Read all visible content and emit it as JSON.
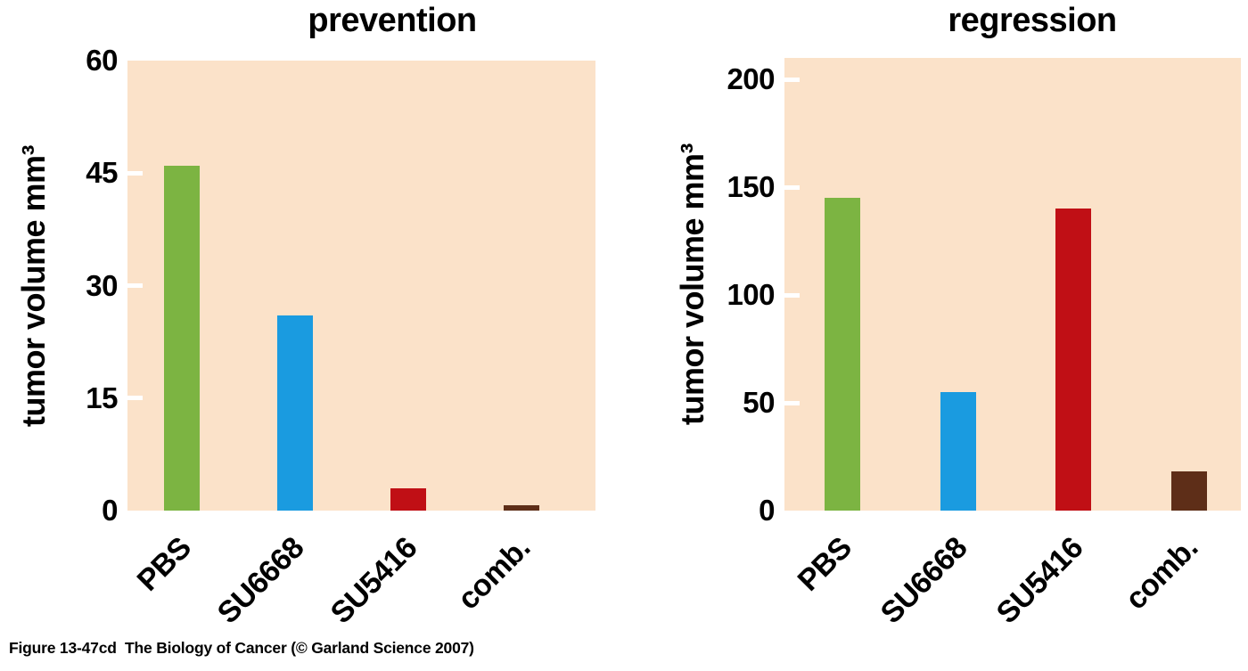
{
  "figure": {
    "caption": "Figure 13-47cd  The Biology of Cancer (© Garland Science 2007)"
  },
  "colors": {
    "plot_background": "#FBE2C9",
    "tick_mark": "#FFFFFF",
    "text": "#000000",
    "bar_green": "#7CB442",
    "bar_blue": "#1A9BE0",
    "bar_red": "#C00F15",
    "bar_brown": "#5E2E18"
  },
  "chart_data": [
    {
      "type": "bar",
      "title": "prevention",
      "ylabel": "tumor volume mm³",
      "xlabel": "",
      "categories": [
        "PBS",
        "SU6668",
        "SU5416",
        "comb."
      ],
      "values": [
        46,
        26,
        3,
        0.7
      ],
      "bar_colors": [
        "#7CB442",
        "#1A9BE0",
        "#C00F15",
        "#5E2E18"
      ],
      "ylim": [
        0,
        60
      ],
      "yticks": [
        0,
        15,
        30,
        45,
        60
      ],
      "axis_top_value": 60,
      "plot_bg": "#FBE2C9",
      "tick_color": "#FFFFFF",
      "grid": false,
      "legend_position": "none"
    },
    {
      "type": "bar",
      "title": "regression",
      "ylabel": "tumor volume mm³",
      "xlabel": "",
      "categories": [
        "PBS",
        "SU6668",
        "SU5416",
        "comb."
      ],
      "values": [
        145,
        55,
        140,
        18
      ],
      "bar_colors": [
        "#7CB442",
        "#1A9BE0",
        "#C00F15",
        "#5E2E18"
      ],
      "ylim": [
        0,
        200
      ],
      "yticks": [
        0,
        50,
        100,
        150,
        200
      ],
      "axis_top_value": 210,
      "plot_bg": "#FBE2C9",
      "tick_color": "#FFFFFF",
      "grid": false,
      "legend_position": "none"
    }
  ]
}
